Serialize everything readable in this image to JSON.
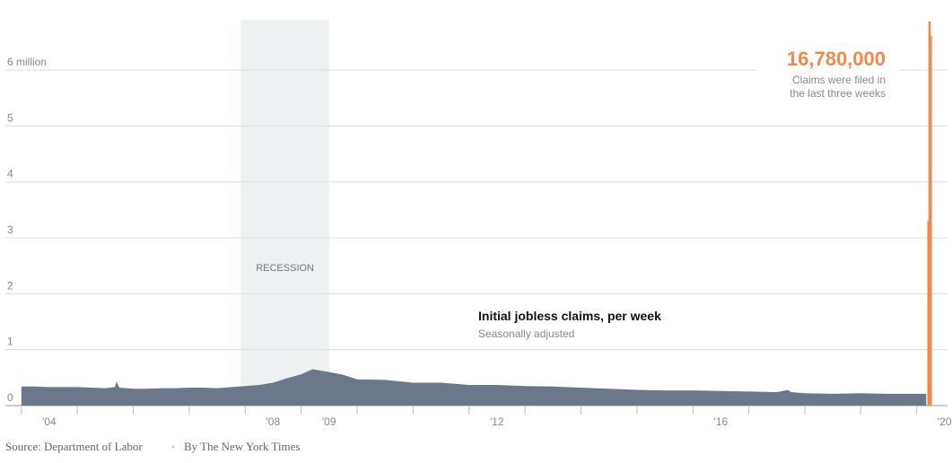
{
  "chart_data": {
    "type": "area",
    "ylim": [
      0,
      6.9
    ],
    "yticks": [
      0,
      1,
      2,
      3,
      4,
      5,
      {
        "value": 6,
        "label": "6 million"
      }
    ],
    "xlim": [
      2003.97,
      2020.55
    ],
    "xticks": [
      {
        "value": 2004,
        "label": "'04"
      },
      {
        "value": 2008,
        "label": "'08"
      },
      {
        "value": 2009,
        "label": "'09"
      },
      {
        "value": 2012,
        "label": "'12"
      },
      {
        "value": 2016,
        "label": "'16"
      },
      {
        "value": 2020,
        "label": "'20"
      }
    ],
    "minor_xticks": [
      2005,
      2006,
      2007,
      2010,
      2011,
      2013,
      2014,
      2015,
      2017,
      2018,
      2019
    ],
    "grid": true,
    "recession": {
      "label": "RECESSION",
      "range": [
        2007.92,
        2009.5
      ],
      "color": "#eef1f2"
    },
    "series": [
      {
        "name": "Initial jobless claims, per week",
        "subtitle": "Seasonally adjusted",
        "color": "#6b788b",
        "x": [
          2004.0,
          2004.25,
          2004.5,
          2004.75,
          2005.0,
          2005.25,
          2005.5,
          2005.67,
          2005.7,
          2005.75,
          2006.0,
          2006.25,
          2006.5,
          2006.75,
          2007.0,
          2007.25,
          2007.5,
          2007.75,
          2008.0,
          2008.25,
          2008.5,
          2008.75,
          2009.0,
          2009.2,
          2009.5,
          2009.75,
          2010.0,
          2010.5,
          2011.0,
          2011.5,
          2012.0,
          2012.5,
          2013.0,
          2013.5,
          2014.0,
          2014.5,
          2015.0,
          2015.5,
          2016.0,
          2016.5,
          2017.0,
          2017.5,
          2017.7,
          2017.75,
          2018.0,
          2018.5,
          2019.0,
          2019.5,
          2020.0,
          2020.17
        ],
        "values": [
          0.34,
          0.34,
          0.33,
          0.33,
          0.33,
          0.32,
          0.31,
          0.33,
          0.43,
          0.32,
          0.3,
          0.3,
          0.31,
          0.31,
          0.32,
          0.32,
          0.31,
          0.33,
          0.35,
          0.37,
          0.41,
          0.49,
          0.56,
          0.65,
          0.6,
          0.55,
          0.47,
          0.46,
          0.41,
          0.41,
          0.37,
          0.37,
          0.35,
          0.34,
          0.32,
          0.3,
          0.28,
          0.27,
          0.27,
          0.26,
          0.25,
          0.24,
          0.28,
          0.24,
          0.22,
          0.21,
          0.22,
          0.21,
          0.21,
          0.21
        ]
      }
    ],
    "highlight": {
      "color": "#f0894a",
      "x": [
        2020.21,
        2020.23,
        2020.25
      ],
      "values": [
        3.307,
        6.867,
        6.606
      ]
    },
    "total_label": "16,780,000",
    "total_note": [
      "Claims were filed in",
      "the last three weeks"
    ],
    "source": "Source: Department of Labor",
    "byline": "By The New York Times"
  }
}
